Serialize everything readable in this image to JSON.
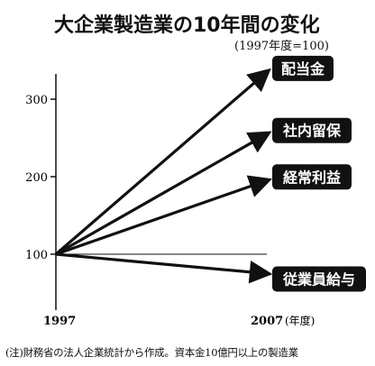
{
  "chart_data": {
    "type": "line",
    "title": "大企業製造業の10年間の変化",
    "subtitle": "(1997年度=100)",
    "x": [
      "1997",
      "2007"
    ],
    "x_unit": "(年度)",
    "yticks": [
      100,
      200,
      300
    ],
    "ylim": [
      0,
      340
    ],
    "series": [
      {
        "name": "配当金",
        "values": [
          100,
          335
        ]
      },
      {
        "name": "社内留保",
        "values": [
          100,
          255
        ]
      },
      {
        "name": "経常利益",
        "values": [
          100,
          195
        ]
      },
      {
        "name": "従業員給与",
        "values": [
          100,
          75
        ]
      }
    ],
    "reference_line": 100,
    "note": "(注)財務省の法人企業統計から作成。資本金10億円以上の製造業",
    "colors": {
      "line": "#111111",
      "badge": "#111111",
      "badge_text": "#ffffff"
    }
  }
}
